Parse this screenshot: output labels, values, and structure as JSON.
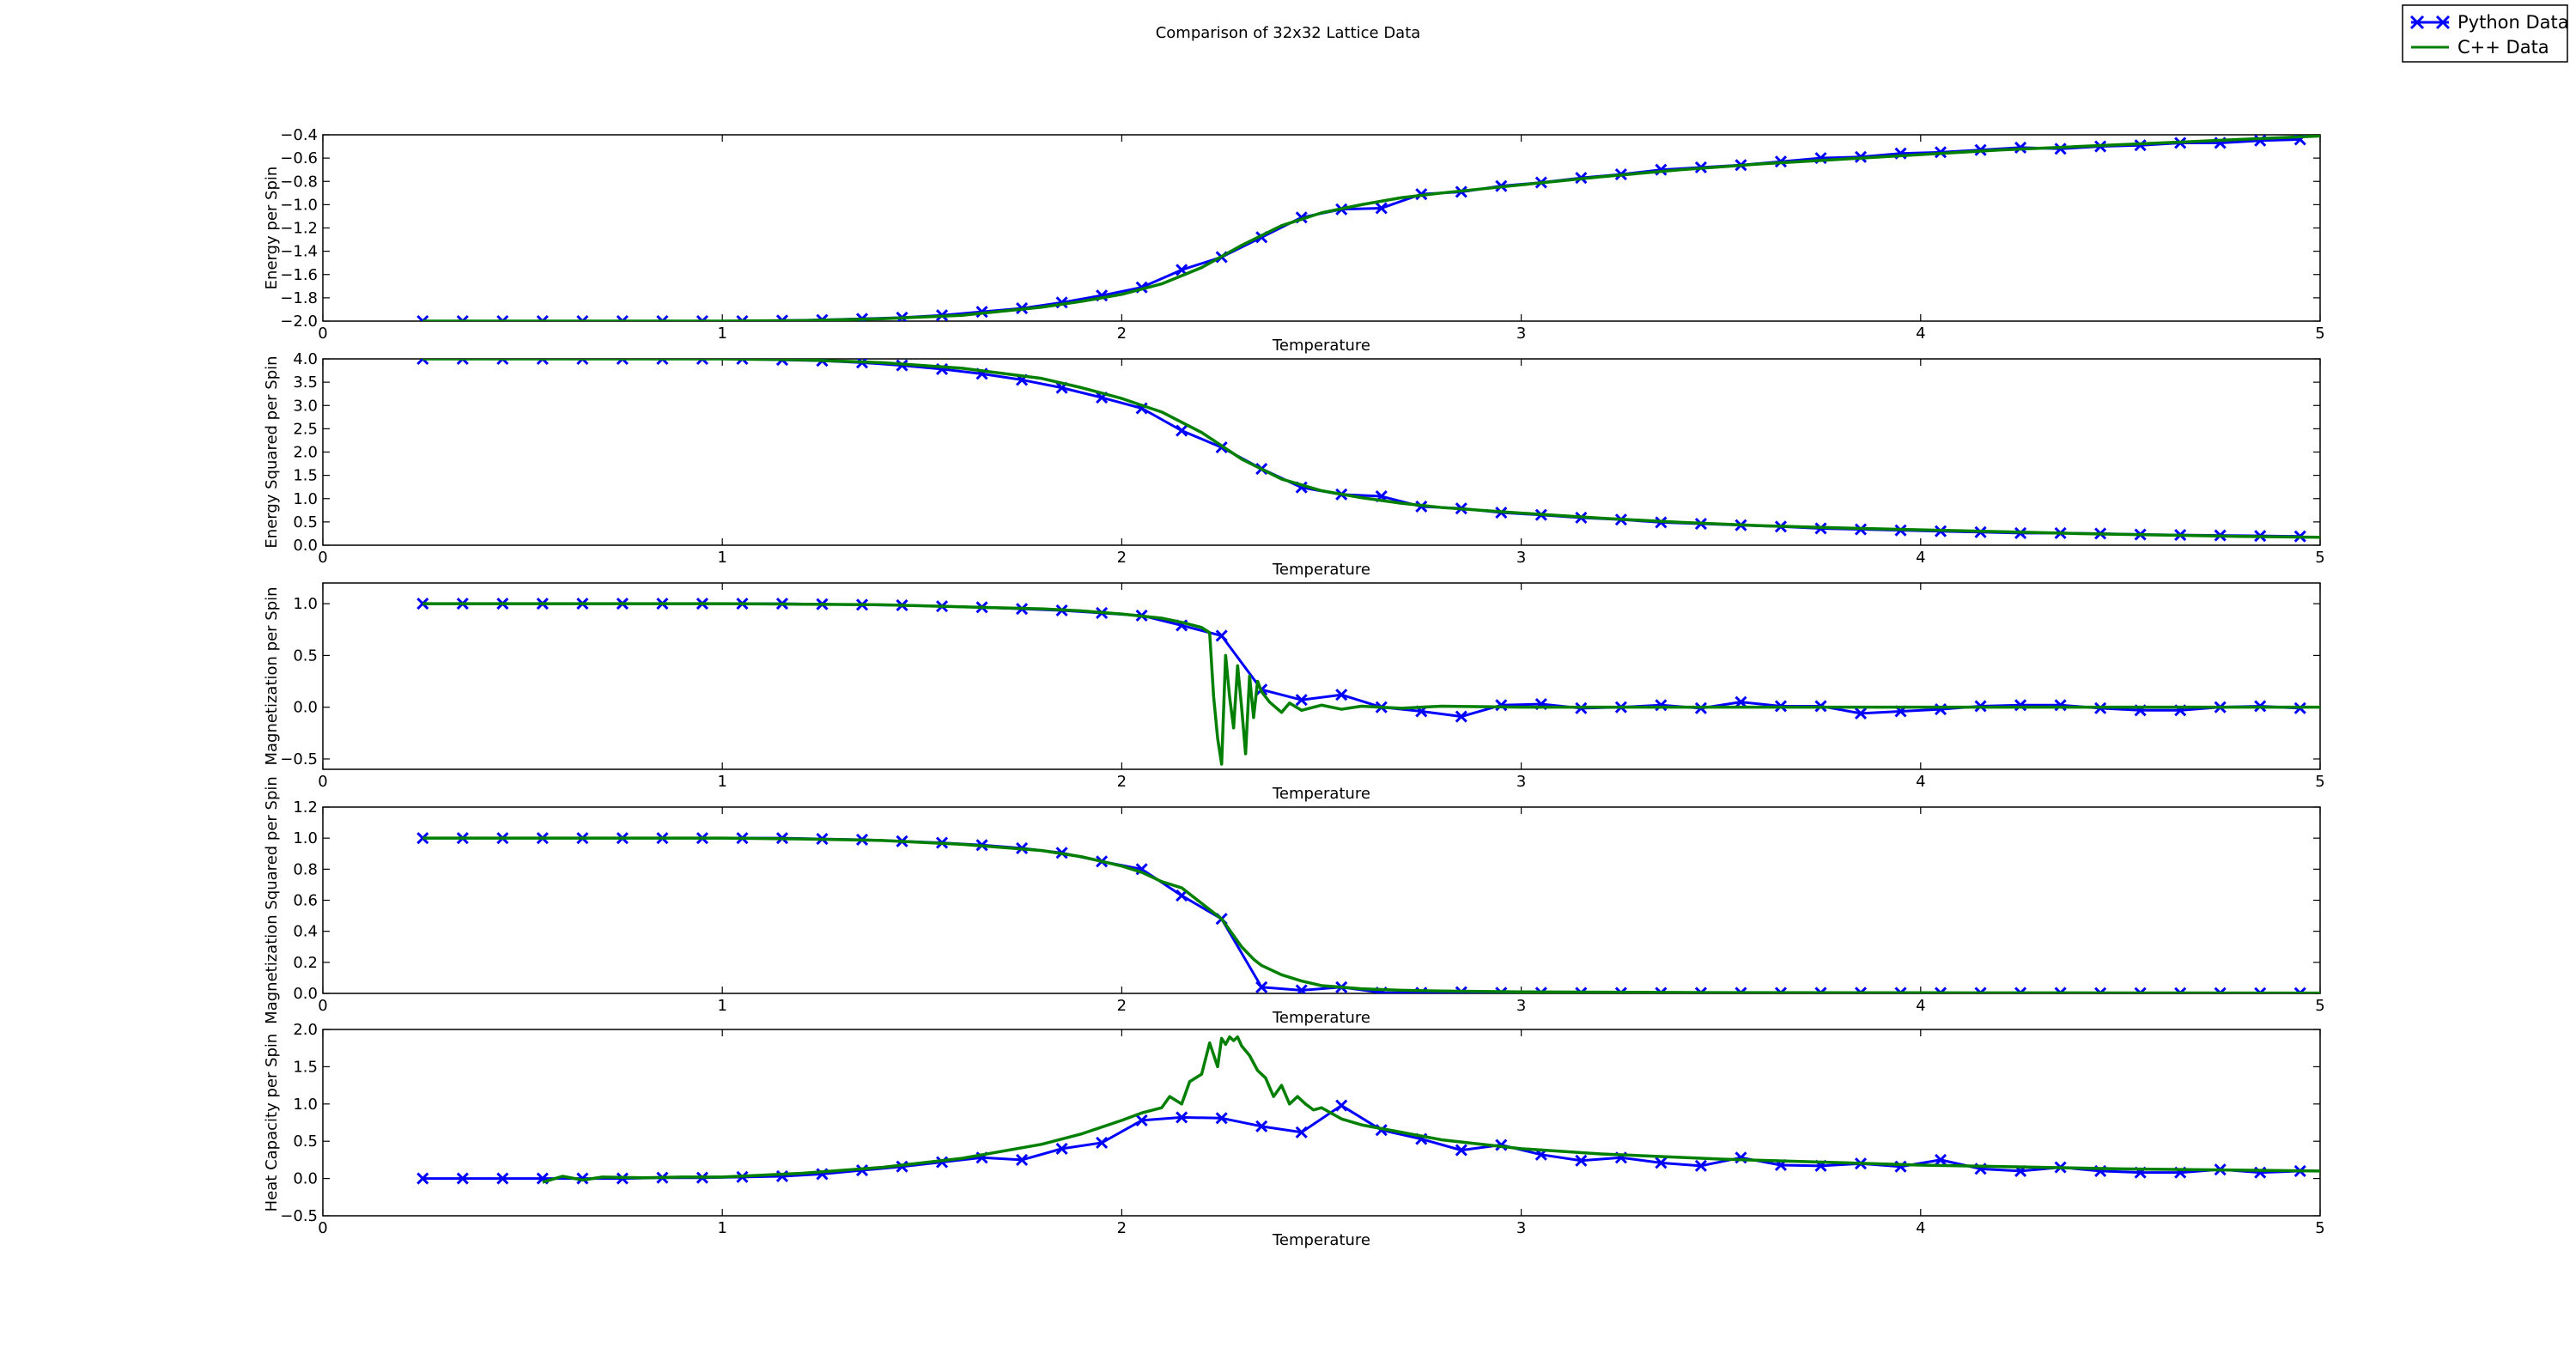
{
  "figure": {
    "title": "Comparison of 32x32 Lattice Data"
  },
  "legend": {
    "placement": "top-right",
    "entries": [
      {
        "label": "Python Data",
        "color": "#0000ff",
        "marker": "x"
      },
      {
        "label": "C++ Data",
        "color": "#007f00",
        "marker": "none"
      }
    ]
  },
  "colors": {
    "python": "#0000ff",
    "cpp": "#007f00",
    "axis": "#000000"
  },
  "chart_data": [
    {
      "type": "line",
      "xlabel": "Temperature",
      "ylabel": "Energy per Spin",
      "xlim": [
        0,
        5
      ],
      "ylim": [
        -2.0,
        -0.4
      ],
      "xticks": [
        0,
        1,
        2,
        3,
        4,
        5
      ],
      "yticks": [
        -2.0,
        -1.8,
        -1.6,
        -1.4,
        -1.2,
        -1.0,
        -0.8,
        -0.6,
        -0.4
      ],
      "ytick_labels": [
        "−2.0",
        "−1.8",
        "−1.6",
        "−1.4",
        "−1.2",
        "−1.0",
        "−0.8",
        "−0.6",
        "−0.4"
      ],
      "series": [
        {
          "name": "Python Data",
          "x": [
            0.25,
            0.35,
            0.45,
            0.55,
            0.65,
            0.75,
            0.85,
            0.95,
            1.05,
            1.15,
            1.25,
            1.35,
            1.45,
            1.55,
            1.65,
            1.75,
            1.85,
            1.95,
            2.05,
            2.15,
            2.25,
            2.35,
            2.45,
            2.55,
            2.65,
            2.75,
            2.85,
            2.95,
            3.05,
            3.15,
            3.25,
            3.35,
            3.45,
            3.55,
            3.65,
            3.75,
            3.85,
            3.95,
            4.05,
            4.15,
            4.25,
            4.35,
            4.45,
            4.55,
            4.65,
            4.75,
            4.85,
            4.95
          ],
          "y": [
            -2.0,
            -2.0,
            -2.0,
            -2.0,
            -2.0,
            -2.0,
            -2.0,
            -2.0,
            -2.0,
            -1.995,
            -1.99,
            -1.98,
            -1.97,
            -1.95,
            -1.92,
            -1.89,
            -1.84,
            -1.78,
            -1.71,
            -1.56,
            -1.45,
            -1.28,
            -1.11,
            -1.04,
            -1.03,
            -0.91,
            -0.89,
            -0.84,
            -0.81,
            -0.77,
            -0.74,
            -0.7,
            -0.68,
            -0.66,
            -0.63,
            -0.6,
            -0.59,
            -0.56,
            -0.55,
            -0.53,
            -0.51,
            -0.52,
            -0.5,
            -0.49,
            -0.47,
            -0.47,
            -0.45,
            -0.44
          ]
        },
        {
          "name": "C++ Data",
          "x": [
            0.25,
            0.5,
            0.75,
            1.0,
            1.2,
            1.4,
            1.6,
            1.8,
            1.9,
            2.0,
            2.1,
            2.2,
            2.3,
            2.4,
            2.5,
            2.6,
            2.7,
            2.8,
            3.0,
            3.2,
            3.4,
            3.6,
            3.8,
            4.0,
            4.2,
            4.4,
            4.6,
            4.8,
            5.0
          ],
          "y": [
            -2.0,
            -2.0,
            -2.0,
            -2.0,
            -1.995,
            -1.98,
            -1.95,
            -1.88,
            -1.83,
            -1.77,
            -1.68,
            -1.54,
            -1.35,
            -1.18,
            -1.07,
            -1.0,
            -0.94,
            -0.9,
            -0.83,
            -0.76,
            -0.7,
            -0.65,
            -0.61,
            -0.57,
            -0.53,
            -0.5,
            -0.47,
            -0.44,
            -0.41
          ]
        }
      ]
    },
    {
      "type": "line",
      "xlabel": "Temperature",
      "ylabel": "Energy Squared per Spin",
      "xlim": [
        0,
        5
      ],
      "ylim": [
        0.0,
        4.0
      ],
      "xticks": [
        0,
        1,
        2,
        3,
        4,
        5
      ],
      "yticks": [
        0.0,
        0.5,
        1.0,
        1.5,
        2.0,
        2.5,
        3.0,
        3.5,
        4.0
      ],
      "ytick_labels": [
        "0.0",
        "0.5",
        "1.0",
        "1.5",
        "2.0",
        "2.5",
        "3.0",
        "3.5",
        "4.0"
      ],
      "series": [
        {
          "name": "Python Data",
          "x": [
            0.25,
            0.35,
            0.45,
            0.55,
            0.65,
            0.75,
            0.85,
            0.95,
            1.05,
            1.15,
            1.25,
            1.35,
            1.45,
            1.55,
            1.65,
            1.75,
            1.85,
            1.95,
            2.05,
            2.15,
            2.25,
            2.35,
            2.45,
            2.55,
            2.65,
            2.75,
            2.85,
            2.95,
            3.05,
            3.15,
            3.25,
            3.35,
            3.45,
            3.55,
            3.65,
            3.75,
            3.85,
            3.95,
            4.05,
            4.15,
            4.25,
            4.35,
            4.45,
            4.55,
            4.65,
            4.75,
            4.85,
            4.95
          ],
          "y": [
            4.0,
            4.0,
            4.0,
            4.0,
            4.0,
            4.0,
            4.0,
            4.0,
            4.0,
            3.98,
            3.96,
            3.92,
            3.86,
            3.78,
            3.68,
            3.55,
            3.38,
            3.17,
            2.94,
            2.46,
            2.1,
            1.64,
            1.24,
            1.09,
            1.05,
            0.83,
            0.79,
            0.7,
            0.65,
            0.59,
            0.55,
            0.49,
            0.46,
            0.43,
            0.4,
            0.36,
            0.34,
            0.32,
            0.3,
            0.28,
            0.26,
            0.26,
            0.25,
            0.23,
            0.22,
            0.21,
            0.2,
            0.19
          ]
        },
        {
          "name": "C++ Data",
          "x": [
            0.25,
            0.5,
            0.75,
            1.0,
            1.2,
            1.4,
            1.6,
            1.8,
            1.9,
            2.0,
            2.1,
            2.2,
            2.3,
            2.4,
            2.5,
            2.6,
            2.7,
            2.8,
            3.0,
            3.2,
            3.4,
            3.6,
            3.8,
            4.0,
            4.2,
            4.4,
            4.6,
            4.8,
            5.0
          ],
          "y": [
            4.0,
            4.0,
            4.0,
            4.0,
            3.98,
            3.92,
            3.8,
            3.58,
            3.38,
            3.15,
            2.86,
            2.42,
            1.85,
            1.42,
            1.17,
            1.02,
            0.9,
            0.81,
            0.69,
            0.58,
            0.49,
            0.42,
            0.37,
            0.33,
            0.29,
            0.25,
            0.22,
            0.19,
            0.17
          ]
        }
      ]
    },
    {
      "type": "line",
      "xlabel": "Temperature",
      "ylabel": "Magnetization per Spin",
      "xlim": [
        0,
        5
      ],
      "ylim": [
        -0.6,
        1.2
      ],
      "xticks": [
        0,
        1,
        2,
        3,
        4,
        5
      ],
      "yticks": [
        -0.5,
        0.0,
        0.5,
        1.0
      ],
      "ytick_labels": [
        "−0.5",
        "0.0",
        "0.5",
        "1.0"
      ],
      "series": [
        {
          "name": "Python Data",
          "x": [
            0.25,
            0.35,
            0.45,
            0.55,
            0.65,
            0.75,
            0.85,
            0.95,
            1.05,
            1.15,
            1.25,
            1.35,
            1.45,
            1.55,
            1.65,
            1.75,
            1.85,
            1.95,
            2.05,
            2.15,
            2.25,
            2.35,
            2.45,
            2.55,
            2.65,
            2.75,
            2.85,
            2.95,
            3.05,
            3.15,
            3.25,
            3.35,
            3.45,
            3.55,
            3.65,
            3.75,
            3.85,
            3.95,
            4.05,
            4.15,
            4.25,
            4.35,
            4.45,
            4.55,
            4.65,
            4.75,
            4.85,
            4.95
          ],
          "y": [
            1.0,
            1.0,
            1.0,
            1.0,
            1.0,
            1.0,
            1.0,
            1.0,
            1.0,
            1.0,
            0.995,
            0.99,
            0.985,
            0.975,
            0.965,
            0.95,
            0.935,
            0.91,
            0.885,
            0.79,
            0.69,
            0.17,
            0.07,
            0.12,
            0.0,
            -0.04,
            -0.09,
            0.02,
            0.03,
            -0.01,
            0.0,
            0.02,
            -0.01,
            0.05,
            0.01,
            0.01,
            -0.06,
            -0.04,
            -0.02,
            0.01,
            0.02,
            0.02,
            -0.01,
            -0.03,
            -0.03,
            0.0,
            0.01,
            -0.01
          ]
        },
        {
          "name": "C++ Data",
          "x": [
            0.25,
            0.5,
            0.75,
            1.0,
            1.2,
            1.4,
            1.6,
            1.8,
            1.9,
            2.0,
            2.1,
            2.15,
            2.2,
            2.22,
            2.23,
            2.24,
            2.25,
            2.26,
            2.27,
            2.28,
            2.29,
            2.3,
            2.31,
            2.32,
            2.33,
            2.34,
            2.35,
            2.37,
            2.4,
            2.42,
            2.45,
            2.5,
            2.55,
            2.6,
            2.7,
            2.8,
            3.0,
            3.2,
            3.4,
            3.6,
            3.8,
            4.0,
            4.2,
            4.4,
            4.6,
            4.8,
            5.0
          ],
          "y": [
            1.0,
            1.0,
            1.0,
            1.0,
            0.995,
            0.99,
            0.97,
            0.95,
            0.93,
            0.9,
            0.86,
            0.82,
            0.77,
            0.72,
            0.1,
            -0.3,
            -0.55,
            0.5,
            0.1,
            -0.2,
            0.4,
            0.0,
            -0.45,
            0.3,
            -0.1,
            0.25,
            0.15,
            0.05,
            -0.05,
            0.04,
            -0.03,
            0.02,
            -0.02,
            0.01,
            -0.01,
            0.01,
            0.0,
            0.0,
            0.0,
            0.0,
            0.0,
            0.0,
            0.0,
            0.0,
            0.0,
            0.0,
            0.0
          ]
        }
      ]
    },
    {
      "type": "line",
      "xlabel": "Temperature",
      "ylabel": "Magnetization Squared per Spin",
      "xlim": [
        0,
        5
      ],
      "ylim": [
        0.0,
        1.2
      ],
      "xticks": [
        0,
        1,
        2,
        3,
        4,
        5
      ],
      "yticks": [
        0.0,
        0.2,
        0.4,
        0.6,
        0.8,
        1.0,
        1.2
      ],
      "ytick_labels": [
        "0.0",
        "0.2",
        "0.4",
        "0.6",
        "0.8",
        "1.0",
        "1.2"
      ],
      "series": [
        {
          "name": "Python Data",
          "x": [
            0.25,
            0.35,
            0.45,
            0.55,
            0.65,
            0.75,
            0.85,
            0.95,
            1.05,
            1.15,
            1.25,
            1.35,
            1.45,
            1.55,
            1.65,
            1.75,
            1.85,
            1.95,
            2.05,
            2.15,
            2.25,
            2.35,
            2.45,
            2.55,
            2.65,
            2.75,
            2.85,
            2.95,
            3.05,
            3.15,
            3.25,
            3.35,
            3.45,
            3.55,
            3.65,
            3.75,
            3.85,
            3.95,
            4.05,
            4.15,
            4.25,
            4.35,
            4.45,
            4.55,
            4.65,
            4.75,
            4.85,
            4.95
          ],
          "y": [
            1.0,
            1.0,
            1.0,
            1.0,
            1.0,
            1.0,
            1.0,
            1.0,
            1.0,
            1.0,
            0.995,
            0.99,
            0.98,
            0.97,
            0.955,
            0.935,
            0.905,
            0.85,
            0.8,
            0.63,
            0.48,
            0.04,
            0.02,
            0.04,
            0.005,
            0.004,
            0.008,
            0.004,
            0.004,
            0.003,
            0.003,
            0.003,
            0.003,
            0.003,
            0.003,
            0.003,
            0.004,
            0.003,
            0.003,
            0.003,
            0.003,
            0.003,
            0.002,
            0.002,
            0.002,
            0.002,
            0.002,
            0.002
          ]
        },
        {
          "name": "C++ Data",
          "x": [
            0.25,
            0.5,
            0.75,
            1.0,
            1.2,
            1.4,
            1.6,
            1.8,
            1.9,
            2.0,
            2.05,
            2.1,
            2.15,
            2.2,
            2.25,
            2.3,
            2.33,
            2.35,
            2.4,
            2.45,
            2.5,
            2.55,
            2.6,
            2.7,
            2.8,
            3.0,
            3.5,
            4.0,
            4.5,
            5.0
          ],
          "y": [
            1.0,
            1.0,
            1.0,
            1.0,
            0.995,
            0.985,
            0.96,
            0.92,
            0.88,
            0.82,
            0.78,
            0.72,
            0.68,
            0.58,
            0.48,
            0.3,
            0.22,
            0.18,
            0.12,
            0.08,
            0.05,
            0.04,
            0.03,
            0.02,
            0.015,
            0.01,
            0.005,
            0.004,
            0.003,
            0.002
          ]
        }
      ]
    },
    {
      "type": "line",
      "xlabel": "Temperature",
      "ylabel": "Heat Capacity per Spin",
      "xlim": [
        0,
        5
      ],
      "ylim": [
        -0.5,
        2.0
      ],
      "xticks": [
        0,
        1,
        2,
        3,
        4,
        5
      ],
      "yticks": [
        -0.5,
        0.0,
        0.5,
        1.0,
        1.5,
        2.0
      ],
      "ytick_labels": [
        "−0.5",
        "0.0",
        "0.5",
        "1.0",
        "1.5",
        "2.0"
      ],
      "series": [
        {
          "name": "Python Data",
          "x": [
            0.25,
            0.35,
            0.45,
            0.55,
            0.65,
            0.75,
            0.85,
            0.95,
            1.05,
            1.15,
            1.25,
            1.35,
            1.45,
            1.55,
            1.65,
            1.75,
            1.85,
            1.95,
            2.05,
            2.15,
            2.25,
            2.35,
            2.45,
            2.55,
            2.65,
            2.75,
            2.85,
            2.95,
            3.05,
            3.15,
            3.25,
            3.35,
            3.45,
            3.55,
            3.65,
            3.75,
            3.85,
            3.95,
            4.05,
            4.15,
            4.25,
            4.35,
            4.45,
            4.55,
            4.65,
            4.75,
            4.85,
            4.95
          ],
          "y": [
            0.0,
            0.0,
            0.0,
            0.0,
            0.0,
            0.0,
            0.01,
            0.01,
            0.02,
            0.03,
            0.06,
            0.11,
            0.16,
            0.22,
            0.28,
            0.25,
            0.4,
            0.48,
            0.78,
            0.82,
            0.81,
            0.7,
            0.62,
            0.98,
            0.65,
            0.53,
            0.38,
            0.45,
            0.32,
            0.24,
            0.28,
            0.21,
            0.17,
            0.28,
            0.18,
            0.17,
            0.2,
            0.16,
            0.25,
            0.13,
            0.1,
            0.15,
            0.1,
            0.08,
            0.08,
            0.12,
            0.08,
            0.1
          ]
        },
        {
          "name": "C++ Data",
          "x": [
            0.55,
            0.6,
            0.65,
            0.7,
            0.8,
            0.9,
            1.0,
            1.2,
            1.4,
            1.6,
            1.8,
            1.9,
            2.0,
            2.05,
            2.1,
            2.12,
            2.15,
            2.17,
            2.2,
            2.22,
            2.24,
            2.25,
            2.26,
            2.27,
            2.28,
            2.29,
            2.3,
            2.32,
            2.34,
            2.36,
            2.38,
            2.4,
            2.42,
            2.44,
            2.46,
            2.48,
            2.5,
            2.55,
            2.6,
            2.7,
            2.8,
            3.0,
            3.2,
            3.5,
            4.0,
            4.5,
            5.0
          ],
          "y": [
            -0.05,
            0.03,
            -0.02,
            0.02,
            0.01,
            0.02,
            0.02,
            0.07,
            0.15,
            0.27,
            0.46,
            0.6,
            0.78,
            0.88,
            0.95,
            1.1,
            1.0,
            1.3,
            1.4,
            1.82,
            1.5,
            1.88,
            1.8,
            1.9,
            1.85,
            1.9,
            1.78,
            1.65,
            1.45,
            1.35,
            1.1,
            1.25,
            1.0,
            1.1,
            1.0,
            0.92,
            0.95,
            0.8,
            0.72,
            0.62,
            0.52,
            0.4,
            0.33,
            0.26,
            0.18,
            0.13,
            0.1
          ]
        }
      ]
    }
  ]
}
